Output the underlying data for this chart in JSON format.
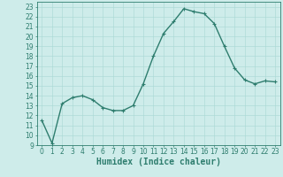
{
  "x": [
    0,
    1,
    2,
    3,
    4,
    5,
    6,
    7,
    8,
    9,
    10,
    11,
    12,
    13,
    14,
    15,
    16,
    17,
    18,
    19,
    20,
    21,
    22,
    23
  ],
  "y": [
    11.5,
    9.2,
    13.2,
    13.8,
    14.0,
    13.6,
    12.8,
    12.5,
    12.5,
    13.0,
    15.2,
    18.0,
    20.3,
    21.5,
    22.8,
    22.5,
    22.3,
    21.3,
    19.0,
    16.8,
    15.6,
    15.2,
    15.5,
    15.4
  ],
  "line_color": "#2e7d6e",
  "marker": "+",
  "marker_size": 3,
  "marker_lw": 0.8,
  "bg_color": "#ceecea",
  "grid_color": "#a8d8d4",
  "xlabel": "Humidex (Indice chaleur)",
  "xlim": [
    -0.5,
    23.5
  ],
  "ylim": [
    9,
    23.5
  ],
  "yticks": [
    9,
    10,
    11,
    12,
    13,
    14,
    15,
    16,
    17,
    18,
    19,
    20,
    21,
    22,
    23
  ],
  "xticks": [
    0,
    1,
    2,
    3,
    4,
    5,
    6,
    7,
    8,
    9,
    10,
    11,
    12,
    13,
    14,
    15,
    16,
    17,
    18,
    19,
    20,
    21,
    22,
    23
  ],
  "axis_color": "#2e7d6e",
  "tick_color": "#2e7d6e",
  "tick_fontsize": 5.5,
  "xlabel_fontsize": 7,
  "linewidth": 1.0
}
